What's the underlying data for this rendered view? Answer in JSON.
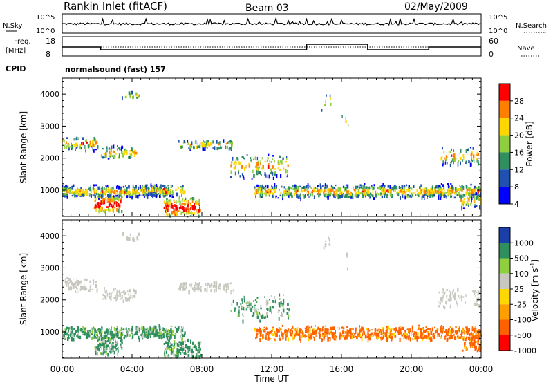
{
  "header": {
    "title": "Rankin Inlet (fitACF)",
    "beam": "Beam 03",
    "date": "02/May/2009"
  },
  "aux_panels": {
    "nsky_label": "N.Sky",
    "nsearch_label": "N.Search",
    "noise_ticks": [
      "10^5",
      "10^0"
    ],
    "freq_label_line1": "Freq.",
    "freq_label_line2": "[MHz]",
    "freq_ticks": [
      "18",
      "8"
    ],
    "nave_label": "Nave",
    "nave_ticks": [
      "60",
      "0"
    ],
    "cpid_label": "CPID",
    "cpid_value": "normalsound (fast) 157"
  },
  "chart_data": [
    {
      "type": "heatmap",
      "name": "power",
      "xlabel": "Time UT",
      "ylabel": "Slant Range [km]",
      "x_ticks": [
        "00:00",
        "04:00",
        "08:00",
        "12:00",
        "16:00",
        "20:00",
        "00:00"
      ],
      "y_ticks": [
        1000,
        2000,
        3000,
        4000
      ],
      "ylim": [
        180,
        4500
      ],
      "colorbar": {
        "label": "Power [dB]",
        "ticks": [
          "28",
          "24",
          "20",
          "16",
          "12",
          "8",
          "4"
        ],
        "colors": [
          "#ff0000",
          "#ff7f00",
          "#ffd700",
          "#8fcf3f",
          "#2f8f5f",
          "#2050b0",
          "#0000ff"
        ]
      }
    },
    {
      "type": "heatmap",
      "name": "velocity",
      "xlabel": "Time UT",
      "ylabel": "Slant Range [km]",
      "x_ticks": [
        "00:00",
        "04:00",
        "08:00",
        "12:00",
        "16:00",
        "20:00",
        "00:00"
      ],
      "y_ticks": [
        1000,
        2000,
        3000,
        4000
      ],
      "ylim": [
        180,
        4500
      ],
      "colorbar": {
        "label": "Velocity [m s",
        "label_sup": "-1",
        "label_end": "]",
        "ticks": [
          "1000",
          "500",
          "100",
          "25",
          "-25",
          "-100",
          "-500",
          "-1000"
        ],
        "colors": [
          "#1a3fa8",
          "#2f8f5f",
          "#8fcf3f",
          "#c8c8c0",
          "#ffd700",
          "#ff9f00",
          "#ff6000",
          "#ff0000"
        ]
      }
    }
  ]
}
